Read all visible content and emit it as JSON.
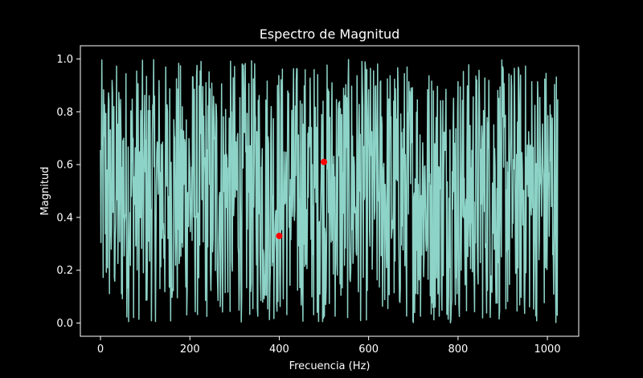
{
  "chart_data": {
    "type": "line",
    "title": "Espectro de Magnitud",
    "xlabel": "Frecuencia (Hz)",
    "ylabel": "Magnitud",
    "xlim": [
      -45,
      1070
    ],
    "ylim": [
      -0.05,
      1.05
    ],
    "xticks": [
      0,
      200,
      400,
      600,
      800,
      1000
    ],
    "yticks": [
      0.0,
      0.2,
      0.4,
      0.6,
      0.8,
      1.0
    ],
    "xtick_labels": [
      "0",
      "200",
      "400",
      "600",
      "800",
      "1000"
    ],
    "ytick_labels": [
      "0.0",
      "0.2",
      "0.4",
      "0.6",
      "0.8",
      "1.0"
    ],
    "grid": false,
    "series": [
      {
        "name": "magnitud",
        "color": "#8dd3c7",
        "n_points": 1024,
        "x_start": 0,
        "x_end": 1023,
        "value_min": 0.0,
        "value_max": 1.0,
        "pattern": "uniform random noise"
      }
    ],
    "markers": [
      {
        "x": 400,
        "y": 0.33,
        "color": "#ff0000"
      },
      {
        "x": 500,
        "y": 0.61,
        "color": "#ff0000"
      }
    ],
    "colors": {
      "background": "#000000",
      "axes": "#ffffff",
      "line": "#8dd3c7",
      "marker": "#ff0000"
    }
  }
}
